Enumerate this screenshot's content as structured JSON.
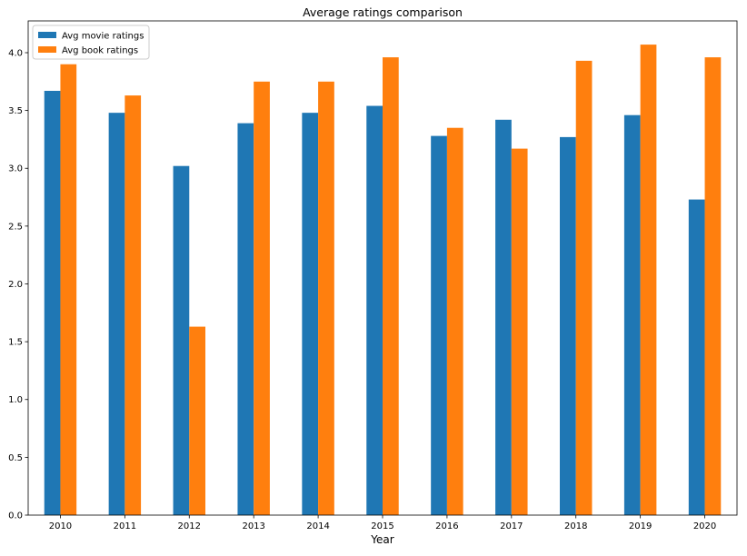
{
  "chart_data": {
    "type": "bar",
    "title": "Average ratings comparison",
    "xlabel": "Year",
    "ylabel": "",
    "categories": [
      "2010",
      "2011",
      "2012",
      "2013",
      "2014",
      "2015",
      "2016",
      "2017",
      "2018",
      "2019",
      "2020"
    ],
    "series": [
      {
        "name": "Avg movie ratings",
        "color": "#1f77b4",
        "values": [
          3.67,
          3.48,
          3.02,
          3.39,
          3.48,
          3.54,
          3.28,
          3.42,
          3.27,
          3.46,
          2.73
        ]
      },
      {
        "name": "Avg book ratings",
        "color": "#ff7f0e",
        "values": [
          3.9,
          3.63,
          1.63,
          3.75,
          3.75,
          3.96,
          3.35,
          3.17,
          3.93,
          4.07,
          3.96
        ]
      }
    ],
    "ylim": [
      0,
      4.275
    ],
    "yticks": [
      "0.0",
      "0.5",
      "1.0",
      "1.5",
      "2.0",
      "2.5",
      "3.0",
      "3.5",
      "4.0"
    ],
    "legend": "top-left",
    "grid": false
  }
}
